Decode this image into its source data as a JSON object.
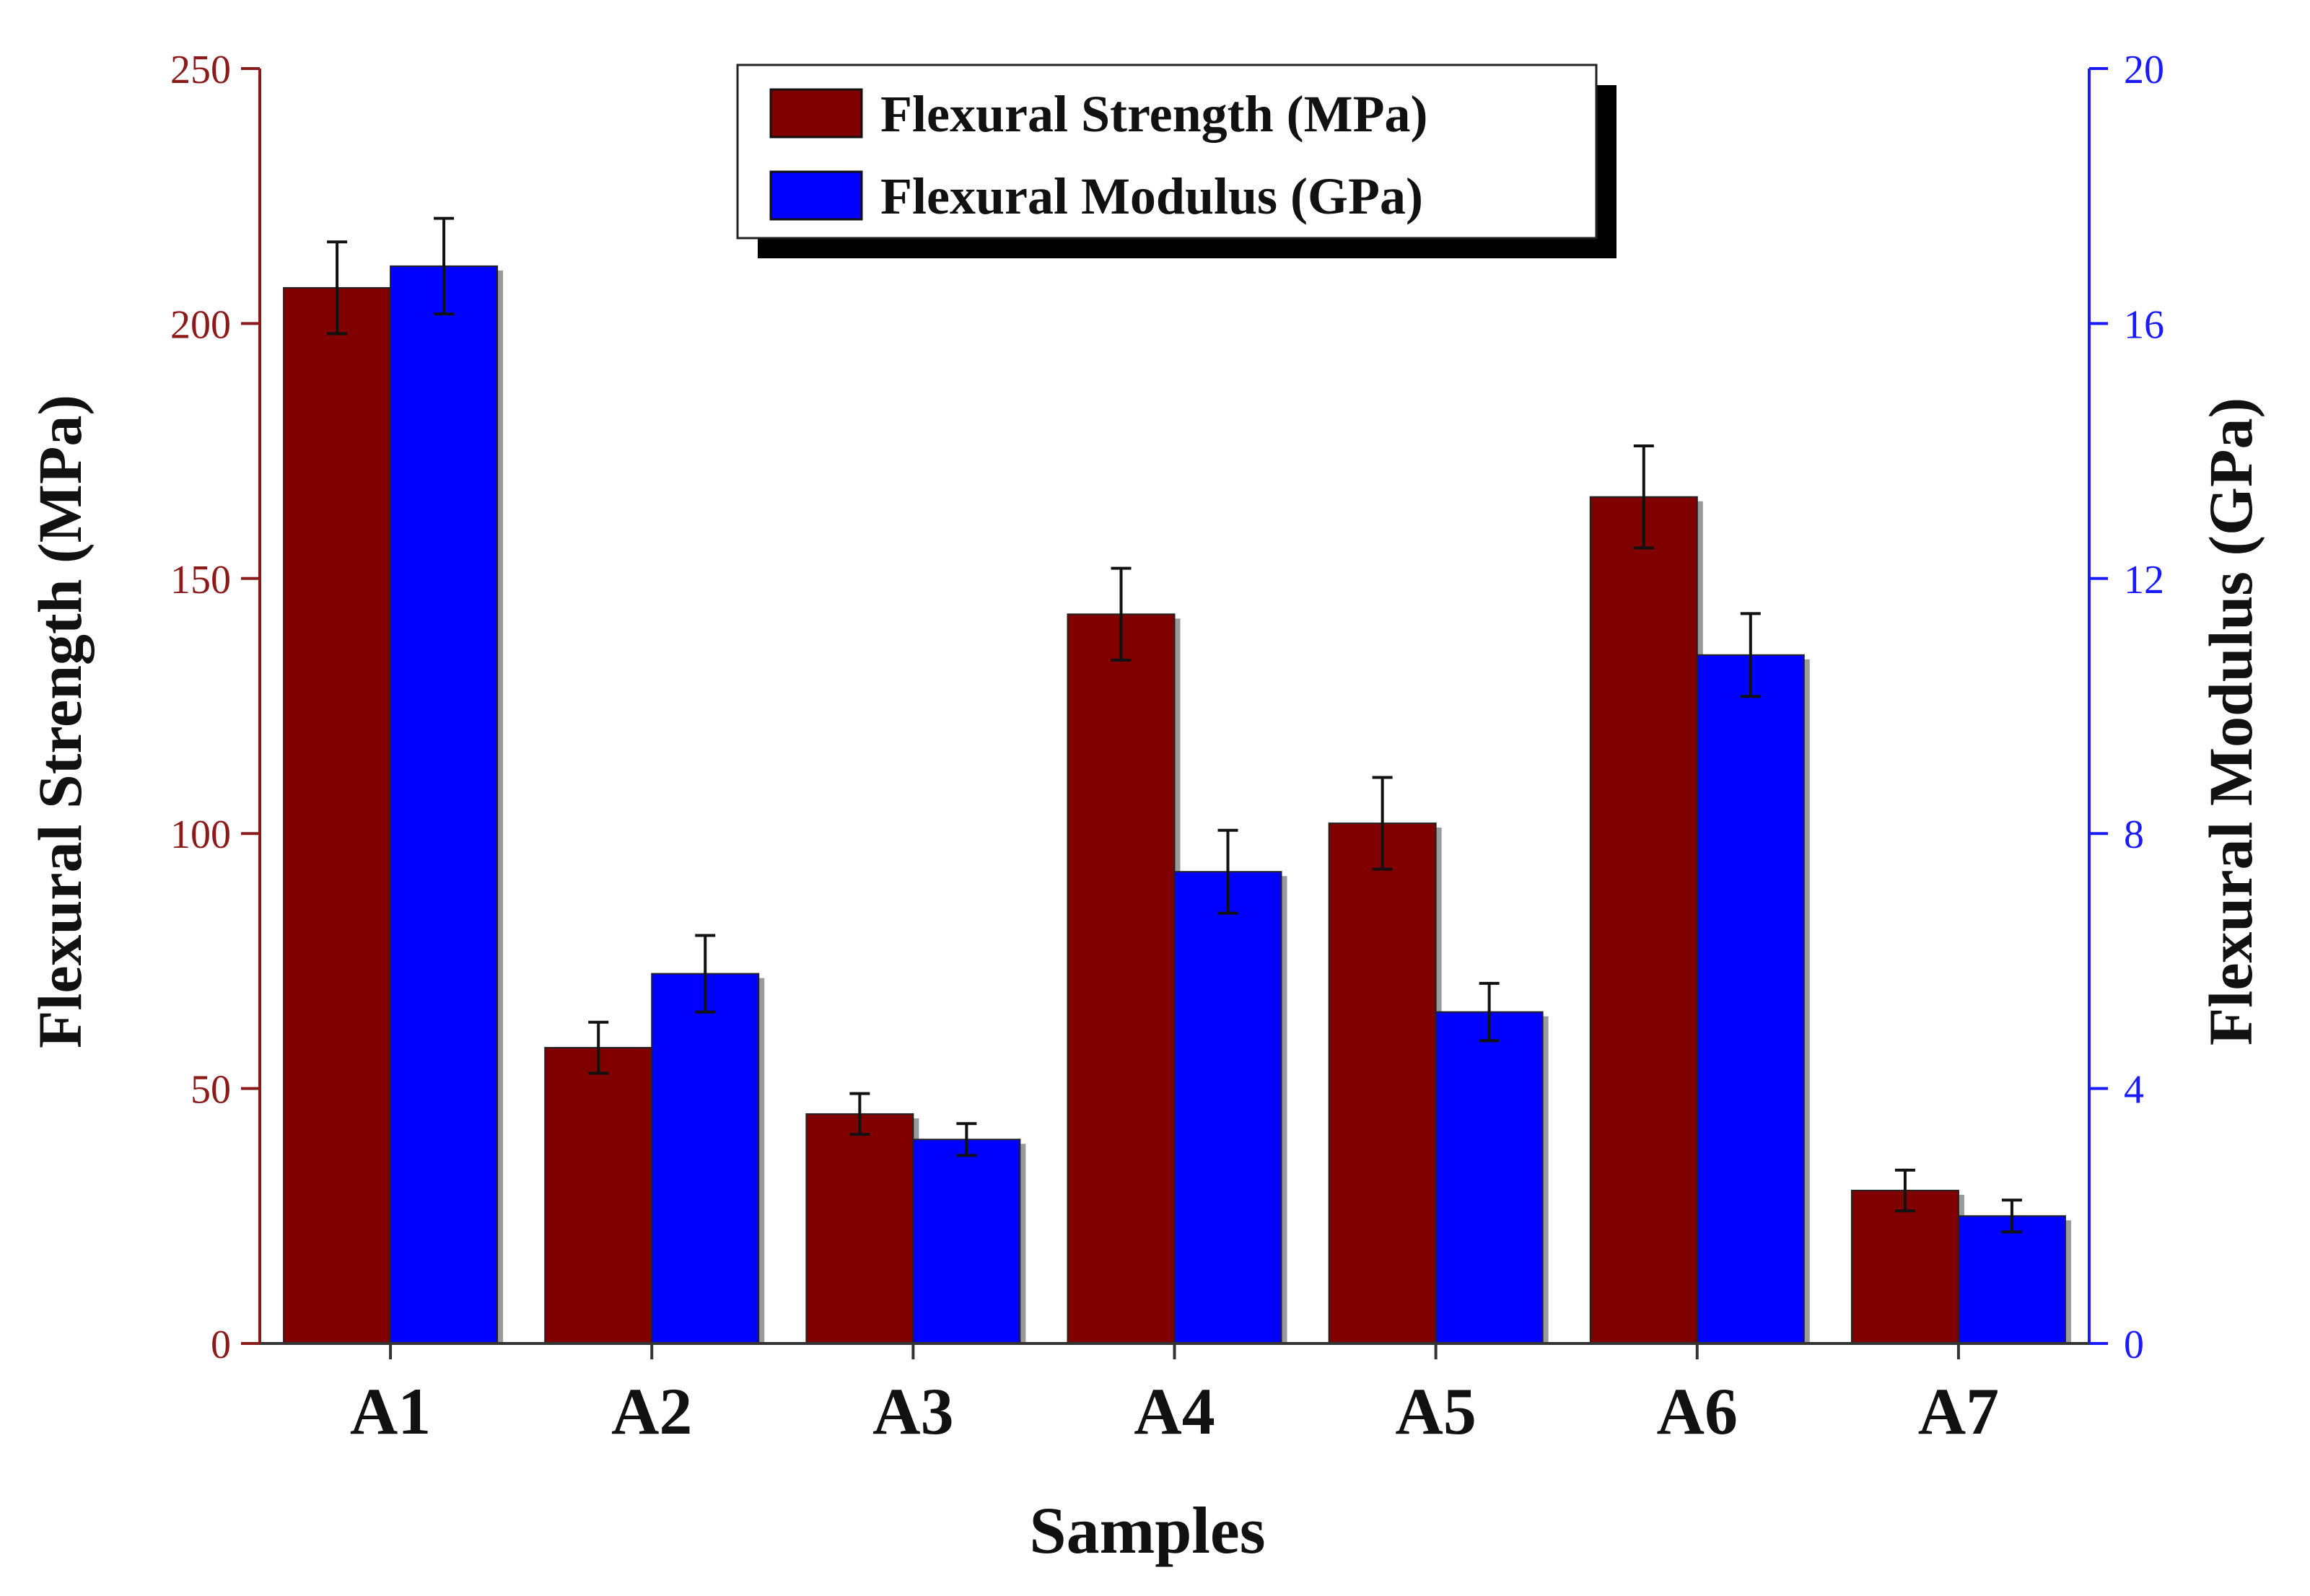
{
  "chart_data": {
    "type": "bar",
    "xlabel": "Samples",
    "categories": [
      "A1",
      "A2",
      "A3",
      "A4",
      "A5",
      "A6",
      "A7"
    ],
    "y_left": {
      "label": "Flexural Strength (MPa)",
      "range": [
        0,
        250
      ],
      "ticks": [
        0,
        50,
        100,
        150,
        200,
        250
      ],
      "tick_labels": [
        "0",
        "50",
        "100",
        "150",
        "200",
        "250"
      ],
      "color": "#8b1a1a"
    },
    "y_right": {
      "label": "Flexural Modulus (GPa)",
      "range": [
        0,
        20
      ],
      "ticks": [
        0,
        4,
        8,
        12,
        16,
        20
      ],
      "tick_labels": [
        "0",
        "4",
        "8",
        "12",
        "16",
        "20"
      ],
      "color": "#1a1aff"
    },
    "series": [
      {
        "name": "Flexural Strength (MPa)",
        "axis": "left",
        "color": "#800000",
        "values": [
          207,
          58,
          45,
          143,
          102,
          166,
          30
        ],
        "errors": [
          9,
          5,
          4,
          9,
          9,
          10,
          4
        ]
      },
      {
        "name": "Flexural Modulus (GPa)",
        "axis": "right",
        "color": "#0000ff",
        "values": [
          16.9,
          5.8,
          3.2,
          7.4,
          5.2,
          10.8,
          2.0
        ],
        "errors": [
          0.75,
          0.6,
          0.25,
          0.65,
          0.45,
          0.65,
          0.25
        ]
      }
    ],
    "legend": {
      "placement": "top-center",
      "entries": [
        "Flexural Strength (MPa)",
        "Flexural Modulus (GPa)"
      ]
    },
    "grid": false
  }
}
